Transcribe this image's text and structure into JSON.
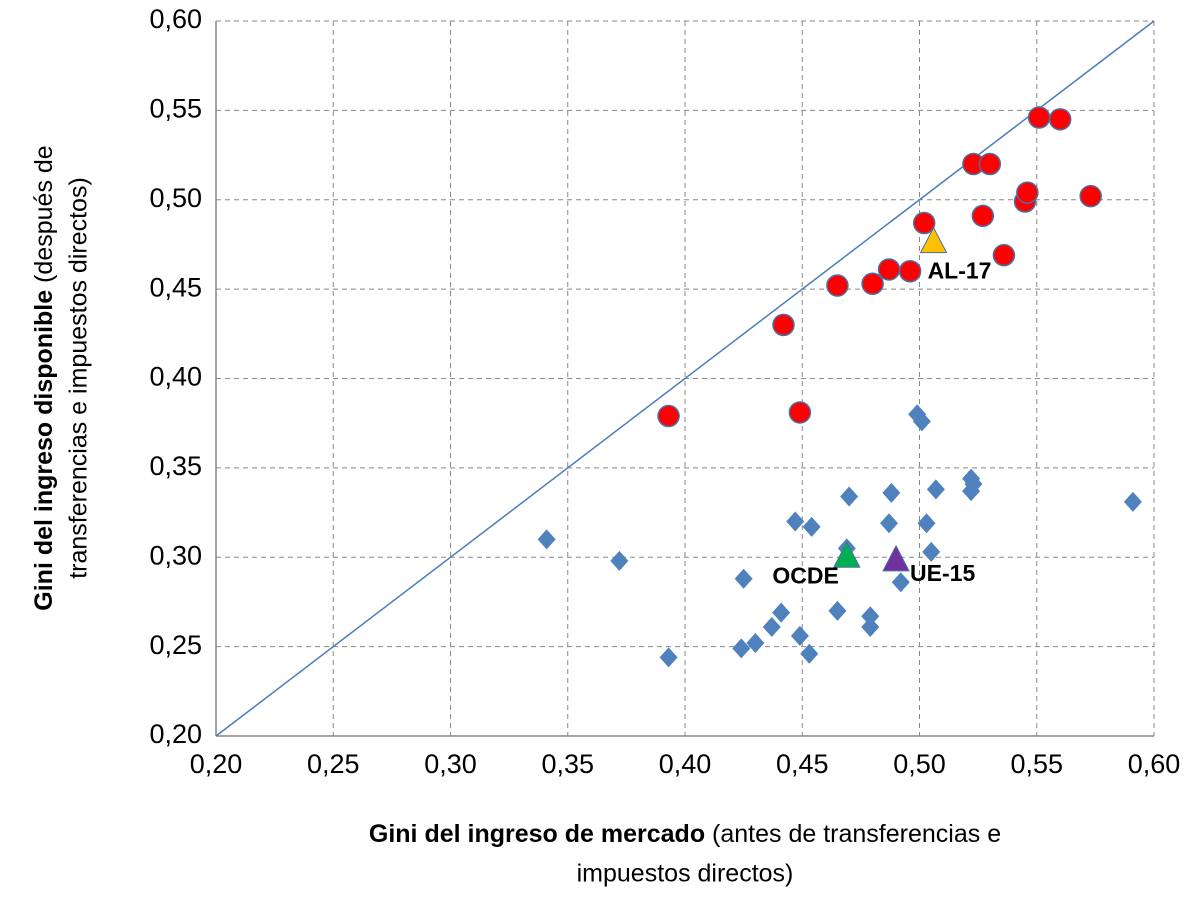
{
  "chart_data": {
    "type": "scatter",
    "xlabel": [
      "Gini del ingreso de mercado",
      "(antes de transferencias e",
      "impuestos directos)"
    ],
    "ylabel": [
      "Gini del ingreso disponible",
      "(después de",
      "transferencias e  impuestos directos)"
    ],
    "xlim": [
      0.2,
      0.6
    ],
    "ylim": [
      0.2,
      0.6
    ],
    "xticks": [
      {
        "value": 0.2,
        "label": "0,20"
      },
      {
        "value": 0.25,
        "label": "0,25"
      },
      {
        "value": 0.3,
        "label": "0,30"
      },
      {
        "value": 0.35,
        "label": "0,35"
      },
      {
        "value": 0.4,
        "label": "0,40"
      },
      {
        "value": 0.45,
        "label": "0,45"
      },
      {
        "value": 0.5,
        "label": "0,50"
      },
      {
        "value": 0.55,
        "label": "0,55"
      },
      {
        "value": 0.6,
        "label": "0,60"
      }
    ],
    "yticks": [
      {
        "value": 0.2,
        "label": "0,20"
      },
      {
        "value": 0.25,
        "label": "0,25"
      },
      {
        "value": 0.3,
        "label": "0,30"
      },
      {
        "value": 0.35,
        "label": "0,35"
      },
      {
        "value": 0.4,
        "label": "0,40"
      },
      {
        "value": 0.45,
        "label": "0,45"
      },
      {
        "value": 0.5,
        "label": "0,50"
      },
      {
        "value": 0.55,
        "label": "0,55"
      },
      {
        "value": 0.6,
        "label": "0,60"
      }
    ],
    "grid": true,
    "diagonal_line": true,
    "series": [
      {
        "marker": "circle",
        "color": "#ff0000",
        "x": [
          0.393,
          0.442,
          0.449,
          0.465,
          0.48,
          0.487,
          0.496,
          0.502,
          0.523,
          0.53,
          0.527,
          0.536,
          0.545,
          0.546,
          0.551,
          0.56,
          0.573
        ],
        "values": [
          0.379,
          0.43,
          0.381,
          0.452,
          0.453,
          0.461,
          0.46,
          0.487,
          0.52,
          0.52,
          0.491,
          0.469,
          0.499,
          0.504,
          0.546,
          0.545,
          0.502
        ]
      },
      {
        "marker": "diamond",
        "color": "#4f81bd",
        "x": [
          0.341,
          0.372,
          0.393,
          0.424,
          0.425,
          0.43,
          0.437,
          0.441,
          0.447,
          0.449,
          0.453,
          0.454,
          0.465,
          0.469,
          0.47,
          0.479,
          0.479,
          0.487,
          0.488,
          0.492,
          0.499,
          0.501,
          0.503,
          0.505,
          0.507,
          0.522,
          0.522,
          0.523,
          0.591
        ],
        "values": [
          0.31,
          0.298,
          0.244,
          0.249,
          0.288,
          0.252,
          0.261,
          0.269,
          0.32,
          0.256,
          0.246,
          0.317,
          0.27,
          0.305,
          0.334,
          0.267,
          0.261,
          0.319,
          0.336,
          0.286,
          0.38,
          0.376,
          0.319,
          0.303,
          0.338,
          0.337,
          0.344,
          0.341,
          0.331
        ]
      },
      {
        "name": "AL-17",
        "marker": "triangle",
        "color": "#ffc000",
        "x": [
          0.506
        ],
        "values": [
          0.476
        ]
      },
      {
        "name": "OCDE",
        "marker": "triangle",
        "color": "#00b050",
        "x": [
          0.469
        ],
        "values": [
          0.3
        ]
      },
      {
        "name": "UE-15",
        "marker": "triangle",
        "color": "#7030a0",
        "x": [
          0.49
        ],
        "values": [
          0.298
        ]
      }
    ]
  }
}
